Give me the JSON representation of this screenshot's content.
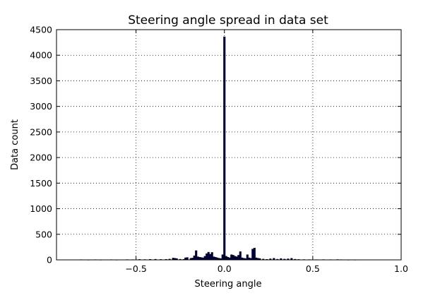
{
  "chart_data": {
    "type": "bar",
    "title": "Steering angle spread in data set",
    "xlabel": "Steering angle",
    "ylabel": "Data count",
    "xlim": [
      -0.95,
      1.0
    ],
    "ylim": [
      0,
      4500
    ],
    "xticks": [
      -0.5,
      0.0,
      0.5,
      1.0
    ],
    "xtick_labels": [
      "−0.5",
      "0.0",
      "0.5",
      "1.0"
    ],
    "yticks": [
      0,
      500,
      1000,
      1500,
      2000,
      2500,
      3000,
      3500,
      4000,
      4500
    ],
    "ytick_labels": [
      "0",
      "500",
      "1000",
      "1500",
      "2000",
      "2500",
      "3000",
      "3500",
      "4000",
      "4500"
    ],
    "grid": true,
    "bar_color": "#00004d",
    "bar_edge_color": "#000000",
    "bin_width": 0.01,
    "bins": [
      {
        "x": -0.81,
        "y": 4
      },
      {
        "x": -0.77,
        "y": 3
      },
      {
        "x": -0.73,
        "y": 4
      },
      {
        "x": -0.7,
        "y": 3
      },
      {
        "x": -0.64,
        "y": 4
      },
      {
        "x": -0.61,
        "y": 3
      },
      {
        "x": -0.55,
        "y": 5
      },
      {
        "x": -0.52,
        "y": 4
      },
      {
        "x": -0.48,
        "y": 8
      },
      {
        "x": -0.45,
        "y": 6
      },
      {
        "x": -0.42,
        "y": 10
      },
      {
        "x": -0.39,
        "y": 12
      },
      {
        "x": -0.36,
        "y": 8
      },
      {
        "x": -0.33,
        "y": 10
      },
      {
        "x": -0.31,
        "y": 15
      },
      {
        "x": -0.29,
        "y": 35
      },
      {
        "x": -0.28,
        "y": 30
      },
      {
        "x": -0.27,
        "y": 25
      },
      {
        "x": -0.25,
        "y": 12
      },
      {
        "x": -0.23,
        "y": 10
      },
      {
        "x": -0.22,
        "y": 40
      },
      {
        "x": -0.21,
        "y": 45
      },
      {
        "x": -0.19,
        "y": 30
      },
      {
        "x": -0.18,
        "y": 35
      },
      {
        "x": -0.17,
        "y": 80
      },
      {
        "x": -0.16,
        "y": 180
      },
      {
        "x": -0.15,
        "y": 60
      },
      {
        "x": -0.14,
        "y": 50
      },
      {
        "x": -0.13,
        "y": 45
      },
      {
        "x": -0.12,
        "y": 40
      },
      {
        "x": -0.11,
        "y": 70
      },
      {
        "x": -0.1,
        "y": 120
      },
      {
        "x": -0.09,
        "y": 150
      },
      {
        "x": -0.08,
        "y": 110
      },
      {
        "x": -0.07,
        "y": 145
      },
      {
        "x": -0.06,
        "y": 60
      },
      {
        "x": -0.05,
        "y": 50
      },
      {
        "x": -0.04,
        "y": 40
      },
      {
        "x": -0.03,
        "y": 30
      },
      {
        "x": -0.02,
        "y": 25
      },
      {
        "x": -0.01,
        "y": 100
      },
      {
        "x": 0.0,
        "y": 4360
      },
      {
        "x": 0.01,
        "y": 70
      },
      {
        "x": 0.02,
        "y": 50
      },
      {
        "x": 0.03,
        "y": 40
      },
      {
        "x": 0.04,
        "y": 100
      },
      {
        "x": 0.05,
        "y": 90
      },
      {
        "x": 0.06,
        "y": 70
      },
      {
        "x": 0.07,
        "y": 60
      },
      {
        "x": 0.08,
        "y": 90
      },
      {
        "x": 0.09,
        "y": 160
      },
      {
        "x": 0.1,
        "y": 40
      },
      {
        "x": 0.11,
        "y": 30
      },
      {
        "x": 0.12,
        "y": 25
      },
      {
        "x": 0.13,
        "y": 100
      },
      {
        "x": 0.14,
        "y": 40
      },
      {
        "x": 0.15,
        "y": 30
      },
      {
        "x": 0.16,
        "y": 210
      },
      {
        "x": 0.17,
        "y": 230
      },
      {
        "x": 0.18,
        "y": 40
      },
      {
        "x": 0.19,
        "y": 30
      },
      {
        "x": 0.2,
        "y": 25
      },
      {
        "x": 0.22,
        "y": 15
      },
      {
        "x": 0.24,
        "y": 10
      },
      {
        "x": 0.26,
        "y": 20
      },
      {
        "x": 0.28,
        "y": 30
      },
      {
        "x": 0.3,
        "y": 12
      },
      {
        "x": 0.32,
        "y": 25
      },
      {
        "x": 0.34,
        "y": 15
      },
      {
        "x": 0.36,
        "y": 20
      },
      {
        "x": 0.38,
        "y": 30
      },
      {
        "x": 0.4,
        "y": 12
      },
      {
        "x": 0.42,
        "y": 8
      },
      {
        "x": 0.45,
        "y": 6
      },
      {
        "x": 0.48,
        "y": 5
      },
      {
        "x": 0.52,
        "y": 4
      },
      {
        "x": 0.56,
        "y": 5
      },
      {
        "x": 0.6,
        "y": 4
      },
      {
        "x": 0.64,
        "y": 6
      },
      {
        "x": 0.66,
        "y": 4
      },
      {
        "x": 0.7,
        "y": 3
      },
      {
        "x": 0.74,
        "y": 3
      }
    ]
  }
}
